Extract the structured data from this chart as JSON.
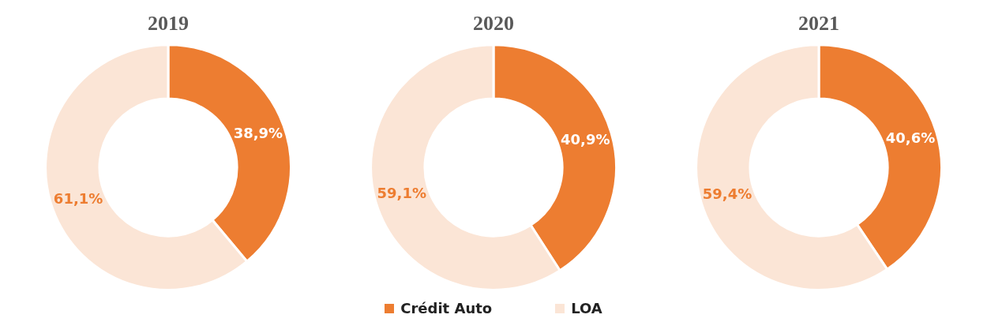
{
  "chart_data": [
    {
      "type": "donut",
      "title": "2019",
      "categories": [
        "Crédit Auto",
        "LOA"
      ],
      "values": [
        38.9,
        61.1
      ],
      "colors": [
        "#ed7d31",
        "#fbe5d6"
      ],
      "value_labels": [
        "38,9%",
        "61,1%"
      ],
      "legend": "bottom"
    },
    {
      "type": "donut",
      "title": "2020",
      "categories": [
        null,
        null
      ],
      "values": [
        40.9,
        59.1
      ],
      "colors": [
        "#ed7d31",
        "#fbe5d6"
      ],
      "value_labels": [
        "40,9%",
        "59,1%"
      ]
    },
    {
      "type": "donut",
      "title": "2021",
      "categories": [
        null,
        null
      ],
      "values": [
        40.6,
        59.4
      ],
      "colors": [
        "#ed7d31",
        "#fbe5d6"
      ],
      "value_labels": [
        "40,6%",
        "59,4%"
      ]
    }
  ]
}
